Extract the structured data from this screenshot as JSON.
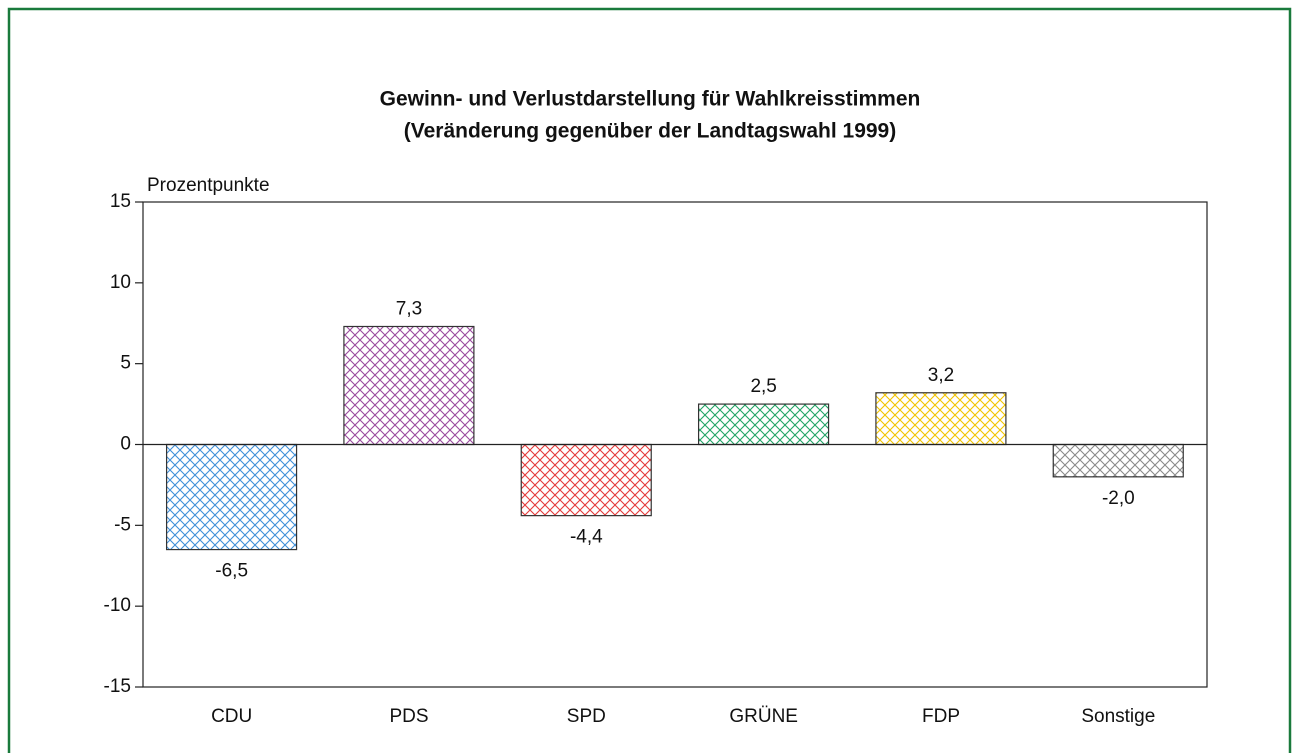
{
  "chart_data": {
    "type": "bar",
    "title": "Gewinn- und Verlustdarstellung für Wahlkreisstimmen",
    "subtitle": "(Veränderung gegenüber der Landtagswahl 1999)",
    "y_label": "Prozentpunkte",
    "categories": [
      "CDU",
      "PDS",
      "SPD",
      "GRÜNE",
      "FDP",
      "Sonstige"
    ],
    "values": [
      -6.5,
      7.3,
      -4.4,
      2.5,
      3.2,
      -2.0
    ],
    "value_labels": [
      "-6,5",
      "7,3",
      "-4,4",
      "2,5",
      "3,2",
      "-2,0"
    ],
    "colors": [
      "#3f8fd8",
      "#9a4a9e",
      "#e53a3a",
      "#22a466",
      "#f2c400",
      "#8a8a8a"
    ],
    "ylim": [
      -15,
      15
    ],
    "yticks": [
      -15,
      -10,
      -5,
      0,
      5,
      10,
      15
    ],
    "grid": false
  }
}
